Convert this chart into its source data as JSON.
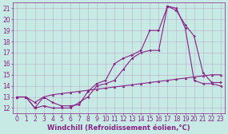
{
  "xlabel": "Windchill (Refroidissement éolien,°C)",
  "bg_color": "#c8eae4",
  "grid_color": "#b088b8",
  "line_color": "#882288",
  "xlim": [
    -0.5,
    23.5
  ],
  "ylim": [
    11.5,
    21.5
  ],
  "xticks": [
    0,
    1,
    2,
    3,
    4,
    5,
    6,
    7,
    8,
    9,
    10,
    11,
    12,
    13,
    14,
    15,
    16,
    17,
    18,
    19,
    20,
    21,
    22,
    23
  ],
  "yticks": [
    12,
    13,
    14,
    15,
    16,
    17,
    18,
    19,
    20,
    21
  ],
  "line1_x": [
    0,
    1,
    2,
    3,
    4,
    5,
    6,
    7,
    8,
    9,
    10,
    11,
    12,
    13,
    14,
    15,
    16,
    17,
    18,
    19,
    20,
    21,
    22,
    23
  ],
  "line1_y": [
    13.0,
    13.0,
    12.0,
    13.0,
    12.5,
    12.2,
    12.2,
    12.3,
    13.5,
    14.2,
    14.5,
    16.0,
    16.5,
    16.8,
    17.2,
    19.0,
    19.0,
    21.2,
    20.8,
    19.5,
    18.5,
    15.2,
    14.3,
    14.3
  ],
  "line2_x": [
    0,
    1,
    2,
    3,
    4,
    5,
    6,
    7,
    8,
    9,
    10,
    11,
    12,
    13,
    14,
    15,
    16,
    17,
    18,
    19,
    20,
    21,
    22,
    23
  ],
  "line2_y": [
    13.0,
    13.0,
    12.0,
    12.2,
    12.0,
    12.0,
    12.0,
    12.5,
    13.0,
    14.0,
    14.2,
    14.5,
    15.5,
    16.5,
    17.0,
    17.2,
    17.2,
    21.2,
    21.0,
    19.2,
    14.5,
    14.2,
    14.2,
    14.0
  ],
  "line3_x": [
    0,
    1,
    2,
    3,
    4,
    5,
    6,
    7,
    8,
    9,
    10,
    11,
    12,
    13,
    14,
    15,
    16,
    17,
    18,
    19,
    20,
    21,
    22,
    23
  ],
  "line3_y": [
    13.0,
    13.0,
    12.5,
    13.0,
    13.2,
    13.3,
    13.4,
    13.5,
    13.6,
    13.7,
    13.8,
    13.9,
    14.0,
    14.1,
    14.2,
    14.3,
    14.4,
    14.5,
    14.6,
    14.7,
    14.8,
    14.9,
    15.0,
    15.0
  ],
  "font_size_label": 6,
  "font_size_tick": 5.5,
  "markersize": 2.0,
  "linewidth": 0.8
}
